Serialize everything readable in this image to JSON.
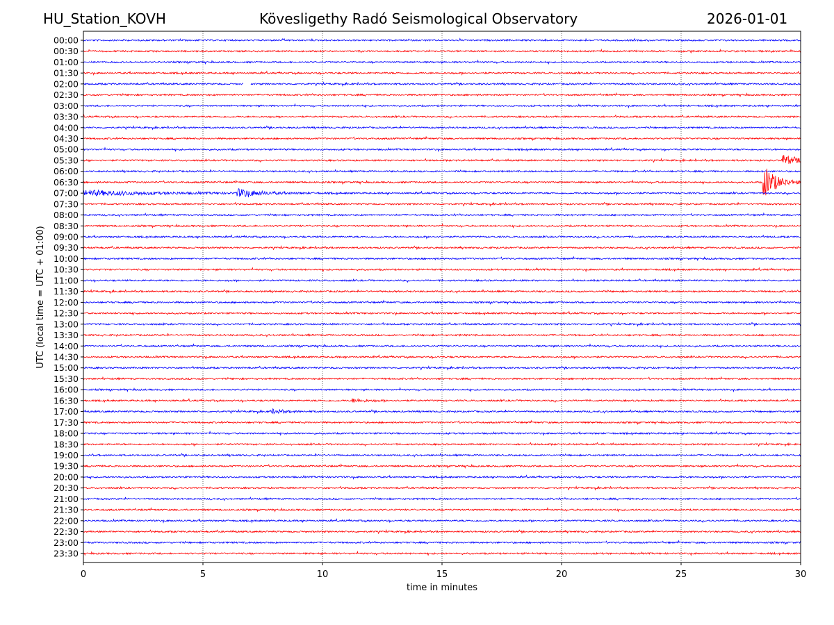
{
  "header": {
    "station": "HU_Station_KOVH",
    "title": "Kövesligethy Radó Seismological Observatory",
    "date": "2026-01-01"
  },
  "chart_data": {
    "type": "line",
    "title": "Kövesligethy Radó Seismological Observatory",
    "xlabel": "time in minutes",
    "ylabel": "UTC (local time = UTC + 01:00)",
    "xlim": [
      0,
      30
    ],
    "xticks": [
      "0",
      "5",
      "10",
      "15",
      "20",
      "25",
      "30"
    ],
    "grid": "vertical dotted at 5-minute intervals",
    "colors": [
      "#0000ff",
      "#ff0000"
    ],
    "rows": [
      "00:00",
      "00:30",
      "01:00",
      "01:30",
      "02:00",
      "02:30",
      "03:00",
      "03:30",
      "04:00",
      "04:30",
      "05:00",
      "05:30",
      "06:00",
      "06:30",
      "07:00",
      "07:30",
      "08:00",
      "08:30",
      "09:00",
      "09:30",
      "10:00",
      "10:30",
      "11:00",
      "11:30",
      "12:00",
      "12:30",
      "13:00",
      "13:30",
      "14:00",
      "14:30",
      "15:00",
      "15:30",
      "16:00",
      "16:30",
      "17:00",
      "17:30",
      "18:00",
      "18:30",
      "19:00",
      "19:30",
      "20:00",
      "20:30",
      "21:00",
      "21:30",
      "22:00",
      "22:30",
      "23:00",
      "23:30"
    ],
    "events": [
      {
        "row": "05:30",
        "start_min": 29.2,
        "amplitude": 9,
        "decay": 0.5
      },
      {
        "row": "06:30",
        "start_min": 28.4,
        "amplitude": 28,
        "decay": 0.5
      },
      {
        "row": "07:00",
        "start_min": 0.0,
        "amplitude": 4,
        "decay": 2.5
      },
      {
        "row": "07:00",
        "start_min": 6.4,
        "amplitude": 6,
        "decay": 0.9
      },
      {
        "row": "16:30",
        "start_min": 11.2,
        "amplitude": 2.5,
        "decay": 0.6
      },
      {
        "row": "17:00",
        "start_min": 7.8,
        "amplitude": 3,
        "decay": 0.6
      }
    ],
    "gaps": [
      {
        "row": "02:00",
        "start_min": 6.7,
        "end_min": 7.0
      }
    ]
  }
}
